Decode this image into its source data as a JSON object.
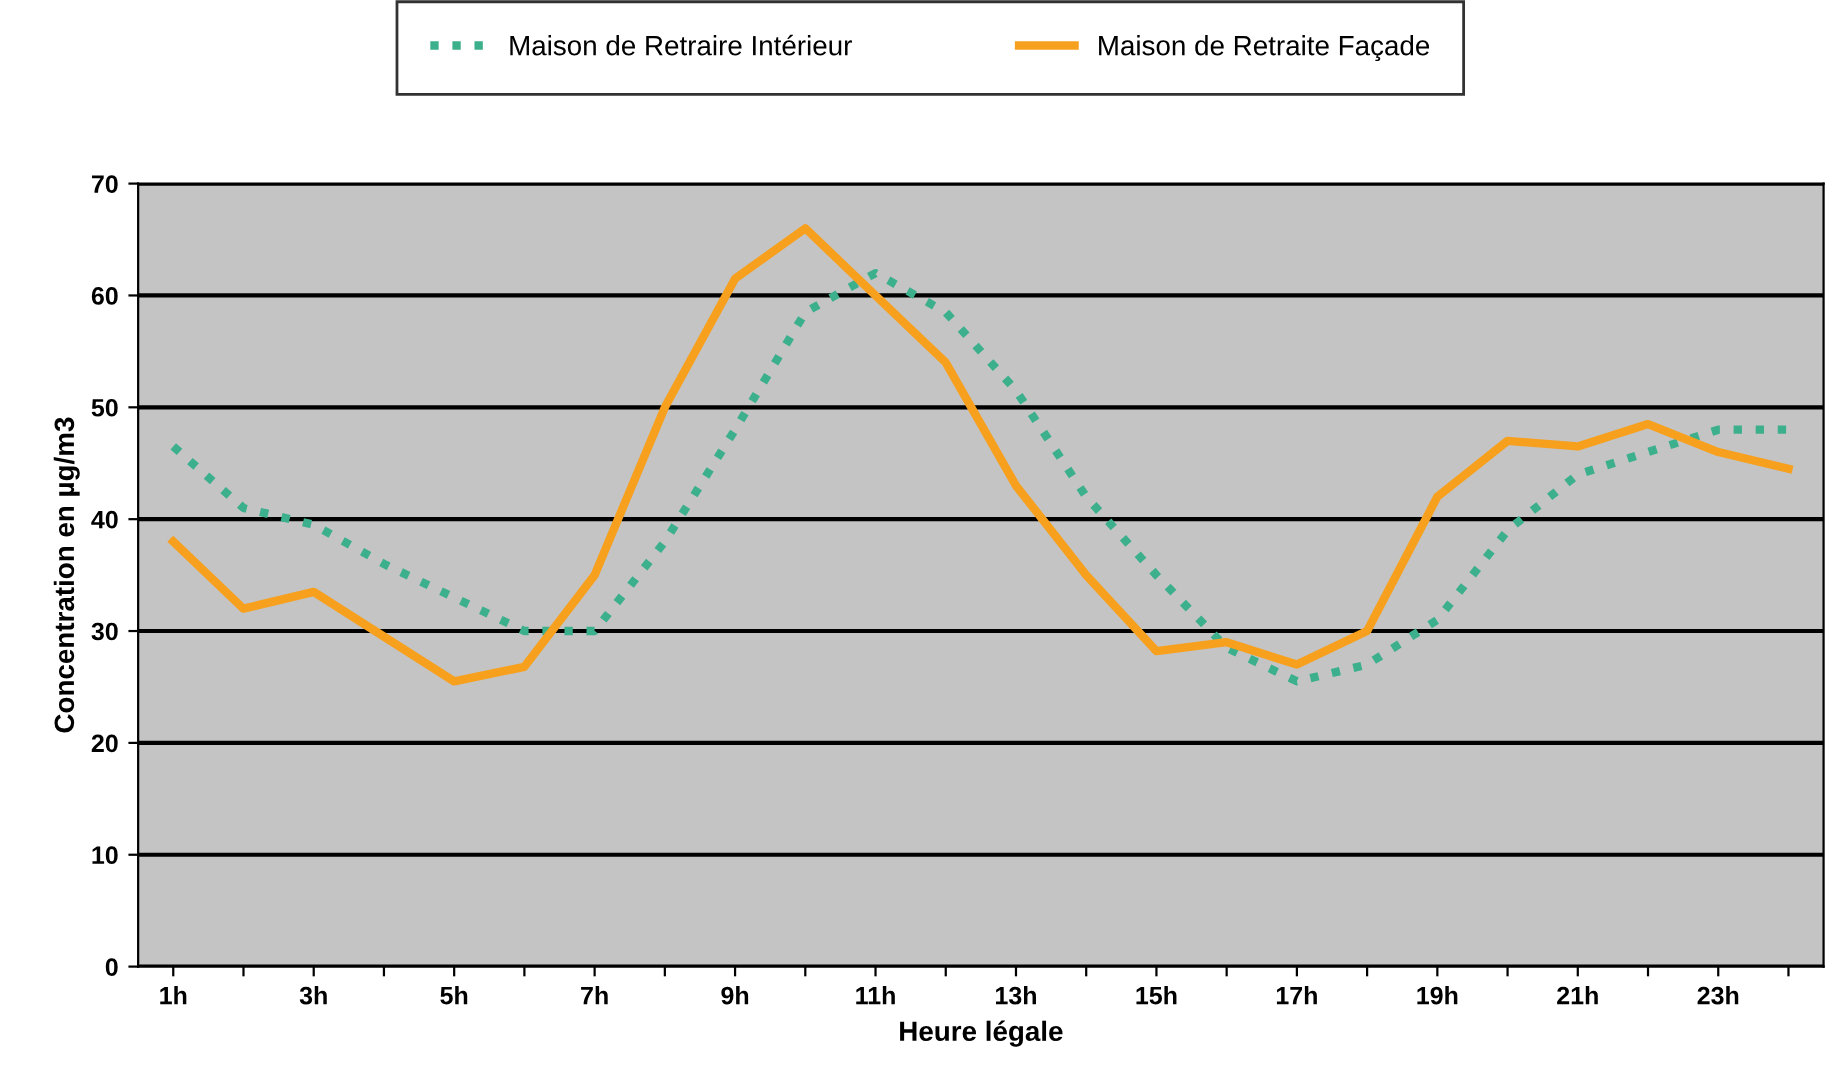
{
  "chart_data": {
    "type": "line",
    "xlabel": "Heure légale",
    "ylabel": "Concentration en µg/m3",
    "categories": [
      "1h",
      null,
      "3h",
      null,
      "5h",
      null,
      "7h",
      null,
      "9h",
      null,
      "11h",
      null,
      "13h",
      null,
      "15h",
      null,
      "17h",
      null,
      "19h",
      null,
      "21h",
      null,
      "23h",
      null
    ],
    "series": [
      {
        "name": "Maison de Retraire Intérieur",
        "color": "#3cb08c",
        "line_style": "dotted",
        "values": [
          46.5,
          41,
          39.5,
          36,
          33,
          30,
          30,
          38,
          48,
          58.5,
          62,
          58.5,
          51.5,
          42,
          35,
          28.5,
          25.5,
          27,
          31,
          39,
          44,
          46,
          48,
          48
        ]
      },
      {
        "name": "Maison de Retraite Façade",
        "color": "#f7a01e",
        "line_style": "solid",
        "values": [
          38,
          32,
          33.5,
          29.5,
          25.5,
          26.8,
          35,
          50,
          61.5,
          66,
          60,
          54,
          43,
          35,
          28.2,
          29,
          27,
          30,
          42,
          47,
          46.5,
          48.5,
          46,
          44.5
        ]
      }
    ],
    "ylim": [
      0,
      70
    ],
    "yticks": [
      0,
      10,
      20,
      30,
      40,
      50,
      60,
      70
    ],
    "grid": "y",
    "legend": "top"
  }
}
